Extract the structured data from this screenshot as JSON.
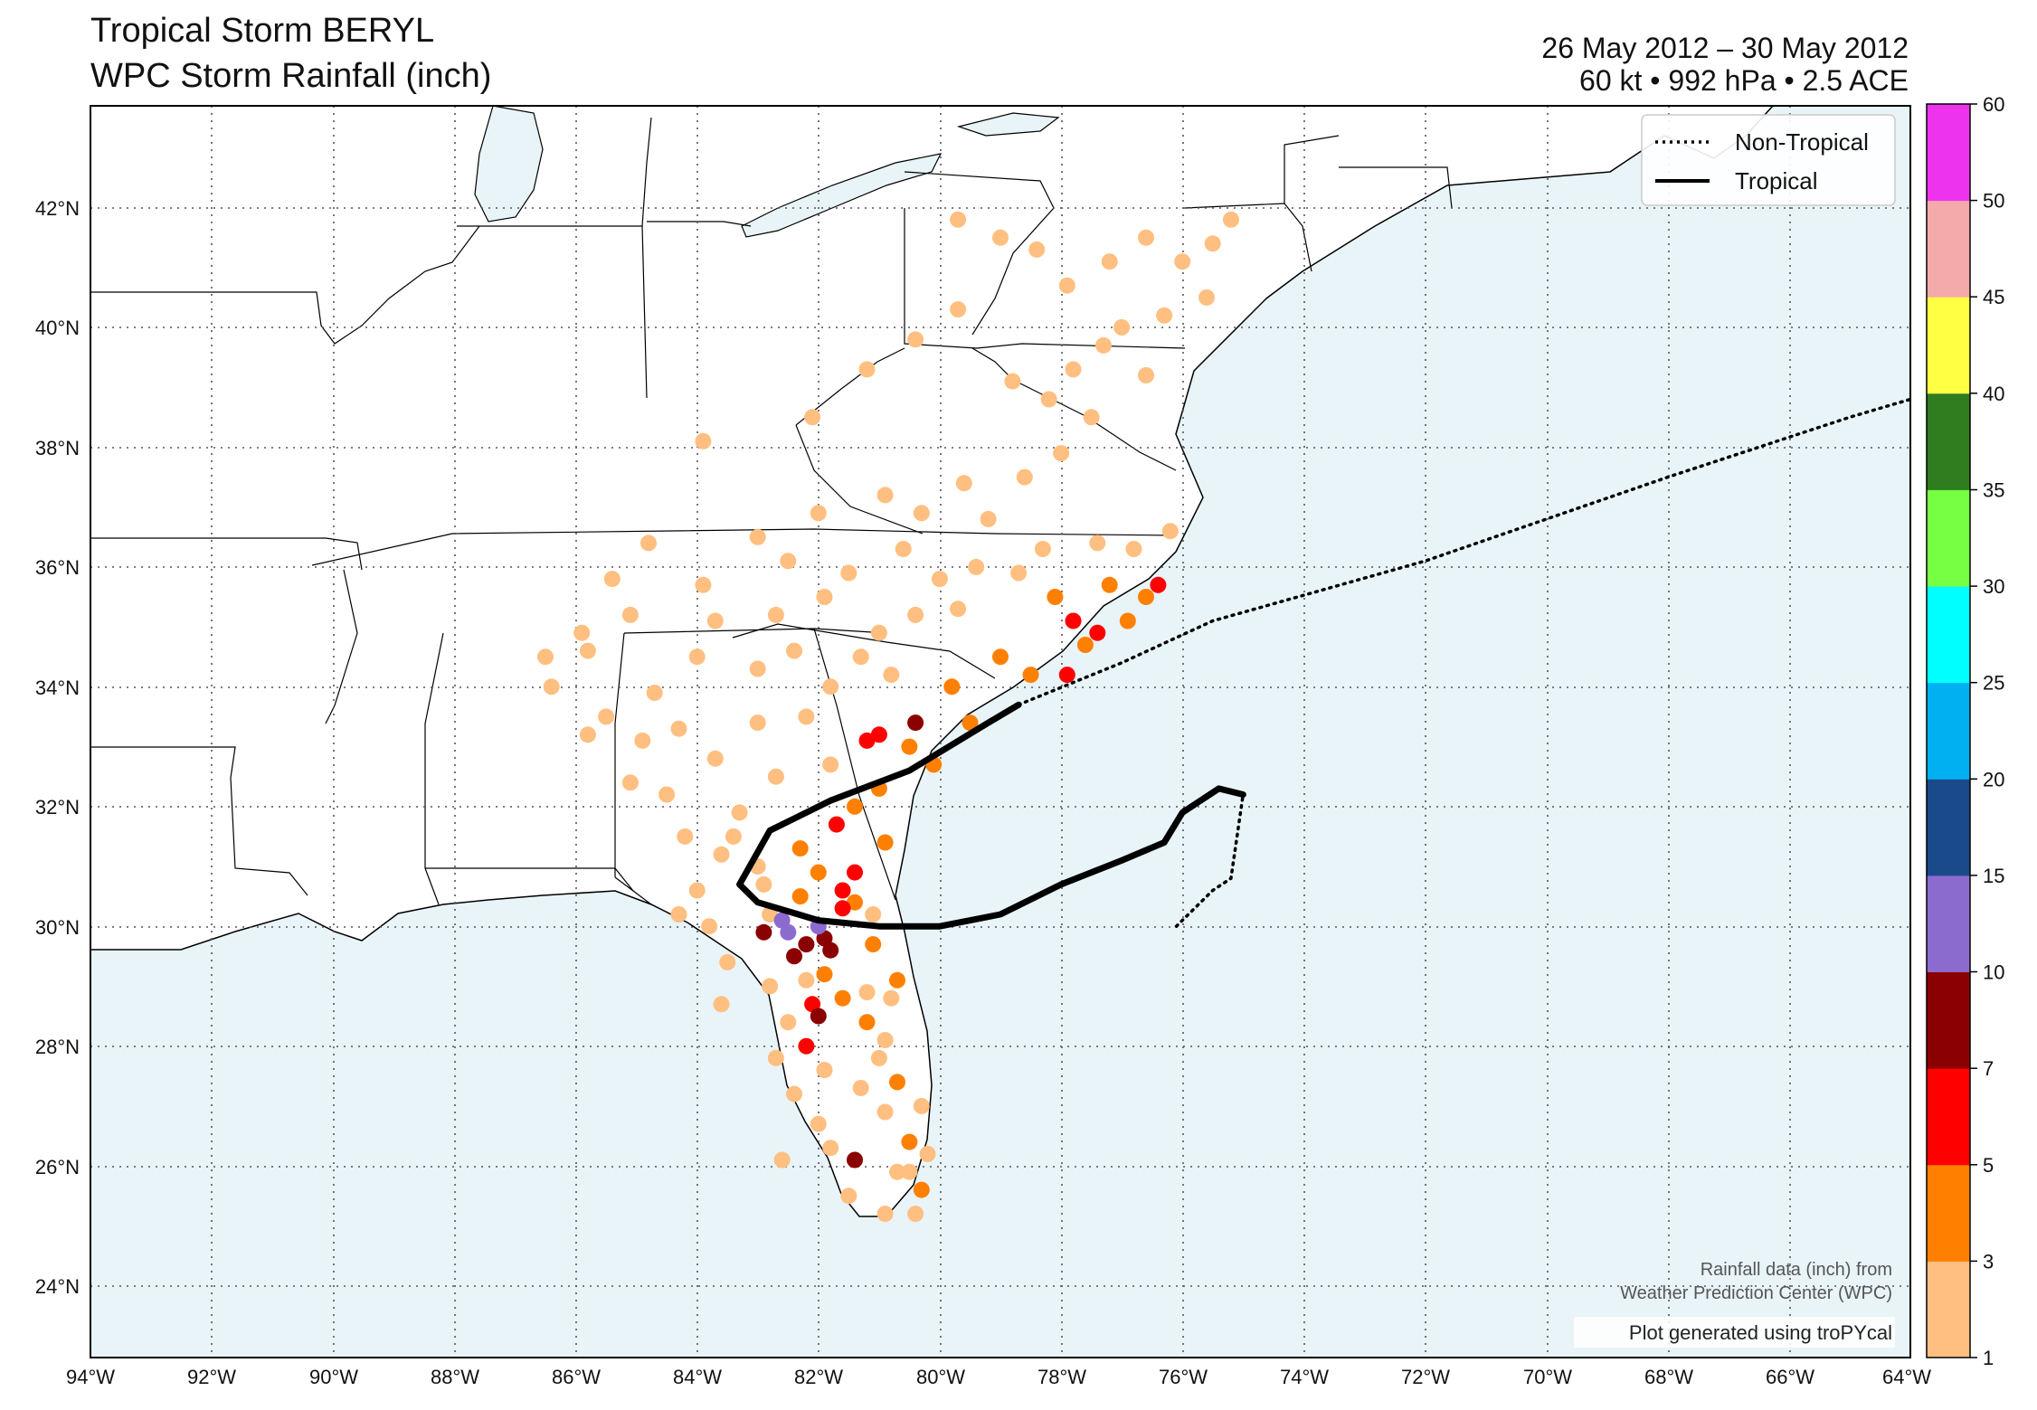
{
  "title_line1": "Tropical Storm BERYL",
  "title_line2": "WPC Storm Rainfall (inch)",
  "date_range": "26 May 2012 – 30 May 2012",
  "storm_stats": "60 kt • 992 hPa • 2.5 ACE",
  "legend": {
    "non_tropical": "Non-Tropical",
    "tropical": "Tropical"
  },
  "attribution": {
    "line1": "Rainfall data (inch) from",
    "line2": "Weather Prediction Center (WPC)",
    "line3": "Plot generated using troPYcal"
  },
  "map": {
    "lon_range": [
      -94,
      -64
    ],
    "lat_range": [
      22.9,
      43.8
    ],
    "lon_ticks": [
      "94°W",
      "92°W",
      "90°W",
      "88°W",
      "86°W",
      "84°W",
      "82°W",
      "80°W",
      "78°W",
      "76°W",
      "74°W",
      "72°W",
      "70°W",
      "68°W",
      "66°W",
      "64°W"
    ],
    "lat_ticks": [
      "24°N",
      "26°N",
      "28°N",
      "30°N",
      "32°N",
      "34°N",
      "36°N",
      "38°N",
      "40°N",
      "42°N"
    ],
    "colors": {
      "ocean": "#e8f4f8",
      "land": "#ffffff",
      "track": "#000000"
    }
  },
  "colorbar": {
    "labels": [
      "1",
      "3",
      "5",
      "7",
      "10",
      "15",
      "20",
      "25",
      "30",
      "35",
      "40",
      "45",
      "50",
      "60"
    ],
    "colors": [
      "#ffbf80",
      "#ff8000",
      "#ff0000",
      "#8b0000",
      "#8c6bcf",
      "#1a4a8a",
      "#00b0f0",
      "#00ffff",
      "#77ff44",
      "#2e7d1f",
      "#ffff44",
      "#f4aaaa",
      "#ee33ee"
    ]
  },
  "track": {
    "tropical": [
      [
        -75.0,
        32.3
      ],
      [
        -75.4,
        32.4
      ],
      [
        -76.0,
        32.0
      ],
      [
        -76.3,
        31.5
      ],
      [
        -77.0,
        31.2
      ],
      [
        -78.0,
        30.8
      ],
      [
        -79.0,
        30.3
      ],
      [
        -80.0,
        30.1
      ],
      [
        -81.0,
        30.1
      ],
      [
        -82.0,
        30.2
      ],
      [
        -83.0,
        30.5
      ],
      [
        -83.3,
        30.8
      ],
      [
        -82.8,
        31.7
      ],
      [
        -81.8,
        32.2
      ],
      [
        -80.5,
        32.7
      ],
      [
        -79.2,
        33.5
      ],
      [
        -78.7,
        33.8
      ]
    ],
    "non_tropical": [
      [
        -76.1,
        30.1
      ],
      [
        -75.5,
        30.7
      ],
      [
        -75.2,
        30.9
      ],
      [
        -75.0,
        32.3
      ]
    ],
    "non_tropical_ext": [
      [
        -78.7,
        33.8
      ],
      [
        -77.0,
        34.5
      ],
      [
        -75.5,
        35.2
      ],
      [
        -72.0,
        36.2
      ],
      [
        -68.0,
        37.6
      ],
      [
        -65.0,
        38.6
      ],
      [
        -64.0,
        38.9
      ]
    ]
  },
  "rain_points": [
    [
      -82.0,
      30.1,
      12
    ],
    [
      -81.9,
      29.9,
      8
    ],
    [
      -82.2,
      29.8,
      8
    ],
    [
      -81.8,
      29.7,
      7
    ],
    [
      -82.6,
      30.2,
      12
    ],
    [
      -82.9,
      30.0,
      9
    ],
    [
      -82.4,
      29.6,
      7
    ],
    [
      -81.6,
      30.7,
      6
    ],
    [
      -82.1,
      28.8,
      6
    ],
    [
      -82.0,
      28.6,
      9
    ],
    [
      -82.2,
      28.1,
      5
    ],
    [
      -81.4,
      26.2,
      8
    ],
    [
      -81.6,
      30.4,
      5
    ],
    [
      -81.4,
      31.0,
      6
    ],
    [
      -82.5,
      30.0,
      14
    ],
    [
      -80.4,
      33.5,
      8
    ],
    [
      -81.2,
      33.2,
      6
    ],
    [
      -81.0,
      33.3,
      5
    ],
    [
      -79.8,
      34.1,
      4
    ],
    [
      -77.8,
      35.2,
      5
    ],
    [
      -77.4,
      35.0,
      5
    ],
    [
      -76.4,
      35.8,
      5
    ],
    [
      -77.9,
      34.3,
      5
    ],
    [
      -82.3,
      31.4,
      4
    ],
    [
      -81.7,
      31.8,
      5
    ],
    [
      -81.4,
      30.5,
      4
    ],
    [
      -82.3,
      30.6,
      4
    ],
    [
      -81.9,
      29.3,
      4
    ],
    [
      -81.6,
      28.9,
      3.5
    ],
    [
      -81.2,
      28.5,
      3.5
    ],
    [
      -80.7,
      27.5,
      4
    ],
    [
      -80.5,
      26.5,
      4
    ],
    [
      -80.3,
      25.7,
      4
    ],
    [
      -80.5,
      33.1,
      4
    ],
    [
      -80.1,
      32.8,
      4
    ],
    [
      -79.5,
      33.5,
      4
    ],
    [
      -78.5,
      34.3,
      4
    ],
    [
      -77.6,
      34.8,
      4
    ],
    [
      -76.9,
      35.2,
      4
    ],
    [
      -76.6,
      35.6,
      4
    ],
    [
      -77.2,
      35.8,
      4
    ],
    [
      -78.1,
      35.6,
      4
    ],
    [
      -79.0,
      34.6,
      4
    ],
    [
      -81.0,
      32.4,
      4
    ],
    [
      -81.4,
      32.1,
      4
    ],
    [
      -80.9,
      31.5,
      4
    ],
    [
      -82.0,
      31.0,
      4
    ],
    [
      -80.7,
      29.2,
      4
    ],
    [
      -81.1,
      29.8,
      4
    ],
    [
      -84.3,
      30.3,
      2
    ],
    [
      -83.8,
      30.1,
      2
    ],
    [
      -83.5,
      29.5,
      2
    ],
    [
      -82.8,
      29.1,
      2
    ],
    [
      -82.5,
      28.5,
      2
    ],
    [
      -82.7,
      27.9,
      2
    ],
    [
      -82.4,
      27.3,
      2
    ],
    [
      -82.0,
      26.8,
      2
    ],
    [
      -81.8,
      26.4,
      2
    ],
    [
      -81.5,
      25.6,
      2
    ],
    [
      -80.9,
      25.3,
      2
    ],
    [
      -81.0,
      27.9,
      2
    ],
    [
      -81.3,
      27.4,
      2
    ],
    [
      -80.9,
      27.0,
      2
    ],
    [
      -80.7,
      26.0,
      2
    ],
    [
      -81.9,
      27.7,
      2
    ],
    [
      -82.2,
      29.2,
      2
    ],
    [
      -81.2,
      29.0,
      2
    ],
    [
      -80.9,
      28.2,
      2
    ],
    [
      -83.0,
      31.1,
      2
    ],
    [
      -83.6,
      31.3,
      2
    ],
    [
      -84.2,
      31.6,
      2
    ],
    [
      -84.5,
      32.3,
      2
    ],
    [
      -83.3,
      32.0,
      2
    ],
    [
      -82.7,
      32.6,
      2
    ],
    [
      -83.7,
      32.9,
      2
    ],
    [
      -84.3,
      33.4,
      2
    ],
    [
      -84.9,
      33.2,
      2
    ],
    [
      -85.5,
      33.6,
      2
    ],
    [
      -83.0,
      33.5,
      2
    ],
    [
      -82.2,
      33.6,
      2
    ],
    [
      -81.8,
      34.1,
      2
    ],
    [
      -82.4,
      34.7,
      2
    ],
    [
      -83.0,
      34.4,
      2
    ],
    [
      -81.3,
      34.6,
      2
    ],
    [
      -80.8,
      34.3,
      2
    ],
    [
      -81.0,
      35.0,
      2
    ],
    [
      -80.4,
      35.3,
      2
    ],
    [
      -79.7,
      35.4,
      2
    ],
    [
      -80.0,
      35.9,
      2
    ],
    [
      -79.4,
      36.1,
      2
    ],
    [
      -78.7,
      36.0,
      2
    ],
    [
      -78.3,
      36.4,
      2
    ],
    [
      -77.4,
      36.5,
      2
    ],
    [
      -76.8,
      36.4,
      2
    ],
    [
      -76.2,
      36.7,
      2
    ],
    [
      -79.2,
      36.9,
      2
    ],
    [
      -80.3,
      37.0,
      2
    ],
    [
      -80.9,
      37.3,
      2
    ],
    [
      -79.6,
      37.5,
      2
    ],
    [
      -78.6,
      37.6,
      2
    ],
    [
      -78.0,
      38.0,
      2
    ],
    [
      -77.5,
      38.6,
      2
    ],
    [
      -78.2,
      38.9,
      2
    ],
    [
      -78.8,
      39.2,
      2
    ],
    [
      -77.8,
      39.4,
      2
    ],
    [
      -77.3,
      39.8,
      2
    ],
    [
      -76.6,
      39.3,
      2
    ],
    [
      -77.0,
      40.1,
      2
    ],
    [
      -76.3,
      40.3,
      2
    ],
    [
      -75.6,
      40.6,
      2
    ],
    [
      -76.0,
      41.2,
      2
    ],
    [
      -76.6,
      41.6,
      2
    ],
    [
      -77.2,
      41.2,
      2
    ],
    [
      -77.9,
      40.8,
      2
    ],
    [
      -78.4,
      41.4,
      2
    ],
    [
      -79.0,
      41.6,
      2
    ],
    [
      -79.7,
      41.9,
      2
    ],
    [
      -75.2,
      41.9,
      2
    ],
    [
      -75.5,
      41.5,
      2
    ],
    [
      -79.7,
      40.4,
      2
    ],
    [
      -80.4,
      39.9,
      2
    ],
    [
      -81.2,
      39.4,
      2
    ],
    [
      -82.1,
      38.6,
      2
    ],
    [
      -83.9,
      38.2,
      2
    ],
    [
      -83.0,
      36.6,
      2
    ],
    [
      -84.8,
      36.5,
      2
    ],
    [
      -85.1,
      35.3,
      2
    ],
    [
      -85.9,
      35.0,
      2
    ],
    [
      -86.5,
      34.6,
      2
    ],
    [
      -86.4,
      34.1,
      2
    ],
    [
      -85.8,
      34.7,
      2
    ],
    [
      -84.0,
      34.6,
      2
    ],
    [
      -83.7,
      35.2,
      2
    ],
    [
      -82.7,
      35.3,
      2
    ],
    [
      -81.9,
      35.6,
      2
    ],
    [
      -83.9,
      35.8,
      2
    ],
    [
      -85.4,
      35.9,
      2
    ],
    [
      -82.5,
      36.2,
      2
    ],
    [
      -81.5,
      36.0,
      2
    ],
    [
      -80.6,
      36.4,
      2
    ],
    [
      -82.0,
      37.0,
      2
    ],
    [
      -85.8,
      33.3,
      2
    ],
    [
      -84.7,
      34.0,
      2
    ],
    [
      -85.1,
      32.5,
      2
    ],
    [
      -83.4,
      31.6,
      2
    ],
    [
      -84.0,
      30.7,
      2
    ],
    [
      -82.9,
      30.8,
      2
    ],
    [
      -81.8,
      32.8,
      2
    ],
    [
      -82.8,
      30.3,
      2
    ],
    [
      -81.1,
      30.3,
      2
    ],
    [
      -80.8,
      28.9,
      2
    ],
    [
      -80.3,
      27.1,
      2
    ],
    [
      -80.2,
      26.3,
      2
    ],
    [
      -80.5,
      26.0,
      2
    ],
    [
      -80.4,
      25.3,
      2
    ],
    [
      -83.6,
      28.8,
      2
    ],
    [
      -82.6,
      26.2,
      2
    ]
  ]
}
